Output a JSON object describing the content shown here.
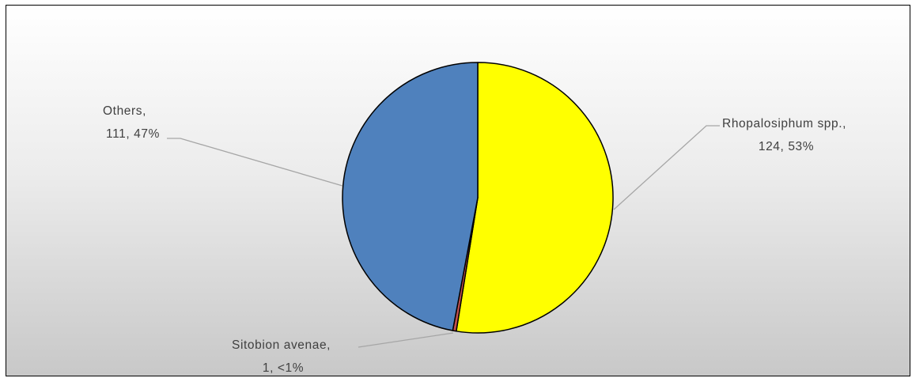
{
  "chart_data": {
    "type": "pie",
    "slices": [
      {
        "name": "Rhopalosiphum spp.",
        "value": 124,
        "percent_label": "53%",
        "color": "#ffff00"
      },
      {
        "name": "Sitobion avenae",
        "value": 1,
        "percent_label": "<1%",
        "color": "#c0504d"
      },
      {
        "name": "Others",
        "value": 111,
        "percent_label": "47%",
        "color": "#4f81bd"
      }
    ],
    "labels": [
      {
        "line1": "Rhopalosiphum spp.,",
        "line2": "124, 53%"
      },
      {
        "line1": "Sitobion avenae,",
        "line2": "1, <1%"
      },
      {
        "line1": "Others,",
        "line2": "111, 47%"
      }
    ],
    "start_angle": "12 o'clock",
    "direction": "clockwise",
    "slice_outline_color": "#000000",
    "leader_line_color": "#a6a6a6"
  }
}
